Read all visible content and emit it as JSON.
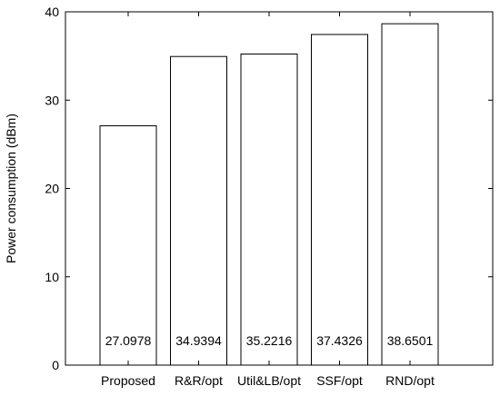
{
  "chart_data": {
    "type": "bar",
    "title": "",
    "xlabel": "",
    "ylabel": "Power consumption (dBm)",
    "categories": [
      "Proposed",
      "R&R/opt",
      "Util&LB/opt",
      "SSF/opt",
      "RND/opt"
    ],
    "values": [
      27.0978,
      34.9394,
      35.2216,
      37.4326,
      38.6501
    ],
    "data_labels": [
      "27.0978",
      "34.9394",
      "35.2216",
      "37.4326",
      "38.6501"
    ],
    "ylim": [
      0,
      40
    ],
    "yticks": [
      0,
      10,
      20,
      30,
      40
    ],
    "ytick_labels": [
      "0",
      "10",
      "20",
      "30",
      "40"
    ],
    "grid": false,
    "legend": "none",
    "colors": {
      "bar_fill": "#ffffff",
      "bar_stroke": "#000000",
      "axis": "#000000"
    }
  }
}
